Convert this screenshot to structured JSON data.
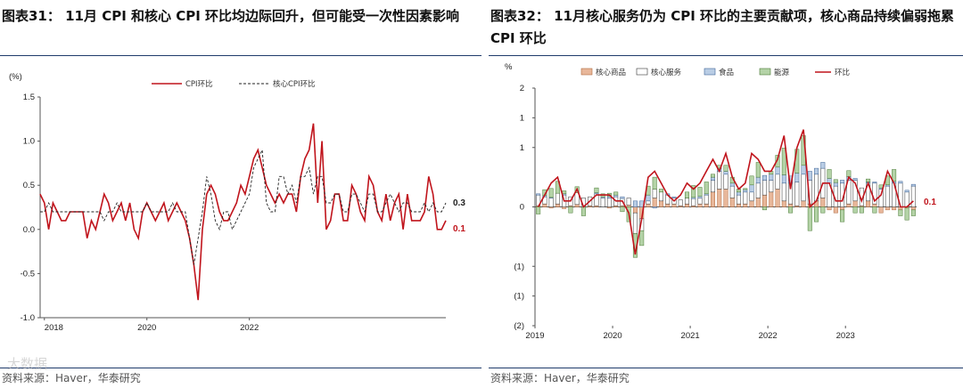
{
  "left": {
    "title": "图表31： 11月 CPI 和核心 CPI 环比均边际回升，但可能受一次性因素影响",
    "source": "资料来源：Haver，华泰研究",
    "chart_data": {
      "type": "line",
      "unit_label": "(%)",
      "x_start": "2017-12",
      "x_end": "2023-12",
      "x_ticks": [
        "2018",
        "2020",
        "2022"
      ],
      "ylim": [
        -1.0,
        1.5
      ],
      "y_ticks": [
        "1.5",
        "1.0",
        "0.5",
        "0.0",
        "-0.5",
        "-1.0"
      ],
      "y_tick_values": [
        1.5,
        1.0,
        0.5,
        0.0,
        -0.5,
        -1.0
      ],
      "series": [
        {
          "name": "CPI环比",
          "style": "solid",
          "color": "#c0141c",
          "values": [
            0.4,
            0.3,
            0.0,
            0.3,
            0.2,
            0.1,
            0.1,
            0.2,
            0.2,
            0.2,
            0.2,
            -0.1,
            0.1,
            0.0,
            0.2,
            0.4,
            0.3,
            0.1,
            0.2,
            0.3,
            0.1,
            0.3,
            0.0,
            -0.1,
            0.2,
            0.3,
            0.2,
            0.1,
            0.2,
            0.3,
            0.1,
            0.2,
            0.3,
            0.2,
            0.1,
            -0.1,
            -0.4,
            -0.8,
            0.0,
            0.4,
            0.5,
            0.4,
            0.2,
            0.1,
            0.1,
            0.2,
            0.3,
            0.5,
            0.4,
            0.6,
            0.8,
            0.9,
            0.7,
            0.5,
            0.4,
            0.3,
            0.4,
            0.3,
            0.4,
            0.4,
            0.2,
            0.6,
            0.8,
            0.9,
            1.2,
            0.3,
            1.0,
            0.0,
            0.1,
            0.4,
            0.4,
            0.1,
            0.1,
            0.5,
            0.4,
            0.2,
            0.1,
            0.6,
            0.5,
            0.2,
            0.1,
            0.4,
            0.1,
            0.3,
            0.4,
            0.0,
            0.4,
            0.1,
            0.1,
            0.1,
            0.2,
            0.6,
            0.4,
            0.0,
            0.0,
            0.1
          ]
        },
        {
          "name": "核心CPI环比",
          "style": "dashed",
          "color": "#222222",
          "values": [
            0.2,
            0.2,
            0.3,
            0.2,
            0.2,
            0.2,
            0.2,
            0.2,
            0.2,
            0.2,
            0.2,
            0.2,
            0.2,
            0.2,
            0.2,
            0.1,
            0.2,
            0.2,
            0.3,
            0.2,
            0.2,
            0.2,
            0.2,
            0.2,
            0.2,
            0.3,
            0.2,
            0.2,
            0.2,
            0.2,
            0.2,
            0.3,
            0.2,
            0.2,
            0.2,
            -0.1,
            -0.4,
            -0.1,
            0.2,
            0.6,
            0.4,
            0.1,
            0.0,
            0.2,
            0.2,
            0.0,
            0.1,
            0.2,
            0.3,
            0.4,
            0.7,
            0.8,
            0.9,
            0.3,
            0.2,
            0.2,
            0.6,
            0.6,
            0.4,
            0.5,
            0.3,
            0.6,
            0.6,
            0.7,
            0.4,
            0.6,
            0.6,
            0.3,
            0.3,
            0.4,
            0.4,
            0.2,
            0.2,
            0.4,
            0.4,
            0.3,
            0.2,
            0.4,
            0.4,
            0.2,
            0.2,
            0.3,
            0.4,
            0.3,
            0.2,
            0.3,
            0.3,
            0.2,
            0.2,
            0.2,
            0.3,
            0.2,
            0.3,
            0.2,
            0.2,
            0.3
          ]
        }
      ],
      "end_labels": [
        {
          "text": "0.3",
          "color": "#222222"
        },
        {
          "text": "0.1",
          "color": "#c0141c"
        }
      ]
    }
  },
  "right": {
    "title": "图表32： 11月核心服务仍为 CPI 环比的主要贡献项，核心商品持续偏弱拖累 CPI 环比",
    "source": "资料来源：Haver，华泰研究",
    "chart_data": {
      "type": "bar",
      "stacked": true,
      "unit_label": "%",
      "x_start": "2019-01",
      "x_end": "2023-11",
      "x_ticks": [
        "2019",
        "2020",
        "2021",
        "2022",
        "2023"
      ],
      "ylim": [
        -2,
        2
      ],
      "y_ticks": [
        "2",
        "1",
        "1",
        "0",
        "(1)",
        "(1)",
        "(2)"
      ],
      "y_tick_values": [
        2,
        1.5,
        1,
        0,
        -1,
        -1.5,
        -2
      ],
      "series": [
        {
          "name": "核心商品",
          "color": "#e8b79a",
          "edge": "#b06a40",
          "values": [
            0.02,
            0.05,
            -0.02,
            0.05,
            -0.03,
            0.02,
            0.04,
            0.0,
            0.02,
            0.02,
            0.0,
            -0.02,
            0.02,
            0.02,
            0.03,
            -0.1,
            -0.2,
            0.05,
            0.15,
            0.1,
            0.05,
            0.05,
            0.02,
            0.05,
            0.02,
            0.05,
            0.05,
            0.25,
            0.3,
            0.3,
            0.15,
            0.05,
            0.05,
            0.1,
            0.15,
            0.2,
            0.25,
            0.3,
            0.1,
            0.05,
            0.02,
            0.1,
            0.05,
            0.1,
            0.15,
            -0.05,
            -0.1,
            -0.05,
            0.05,
            0.1,
            0.02,
            0.1,
            0.05,
            -0.1,
            -0.05,
            -0.05,
            -0.05,
            -0.02,
            -0.05
          ]
        },
        {
          "name": "核心服务",
          "color": "#ffffff",
          "edge": "#333333",
          "values": [
            0.18,
            0.12,
            0.15,
            0.18,
            0.2,
            0.15,
            0.2,
            0.15,
            0.15,
            0.2,
            0.15,
            0.15,
            0.15,
            0.12,
            0.12,
            -0.35,
            -0.2,
            0.05,
            0.15,
            0.15,
            0.15,
            0.1,
            0.1,
            0.1,
            0.12,
            0.1,
            0.15,
            0.2,
            0.3,
            0.25,
            0.2,
            0.15,
            0.2,
            0.15,
            0.25,
            0.25,
            0.2,
            0.25,
            0.3,
            0.35,
            0.4,
            0.45,
            0.4,
            0.45,
            0.5,
            0.4,
            0.35,
            0.4,
            0.4,
            0.35,
            0.3,
            0.3,
            0.35,
            0.3,
            0.35,
            0.4,
            0.4,
            0.25,
            0.35
          ]
        },
        {
          "name": "食品",
          "color": "#b9cde5",
          "edge": "#3f6596",
          "values": [
            0.02,
            0.02,
            0.01,
            0.0,
            0.02,
            0.0,
            0.0,
            0.0,
            0.0,
            0.02,
            0.02,
            0.03,
            0.03,
            0.03,
            0.0,
            0.1,
            0.1,
            0.1,
            -0.02,
            0.0,
            0.02,
            0.02,
            0.0,
            0.0,
            0.02,
            0.03,
            0.02,
            0.05,
            0.05,
            0.05,
            0.05,
            0.05,
            0.04,
            0.12,
            0.1,
            0.08,
            0.1,
            0.12,
            0.14,
            0.12,
            0.15,
            0.15,
            0.15,
            0.1,
            0.1,
            0.08,
            0.06,
            0.05,
            0.06,
            0.03,
            0.0,
            0.02,
            0.02,
            0.02,
            0.02,
            0.03,
            0.03,
            0.03,
            0.03
          ]
        },
        {
          "name": "能源",
          "color": "#b4d3a7",
          "edge": "#4a7a35",
          "values": [
            -0.12,
            0.1,
            0.15,
            0.2,
            0.05,
            -0.1,
            0.1,
            -0.15,
            0.0,
            0.08,
            0.05,
            0.05,
            0.05,
            -0.08,
            -0.25,
            -0.4,
            -0.25,
            0.15,
            0.2,
            0.05,
            0.0,
            0.0,
            0.0,
            0.1,
            0.2,
            0.15,
            0.2,
            0.05,
            0.05,
            0.1,
            0.1,
            0.05,
            0.02,
            0.15,
            0.25,
            -0.05,
            0.05,
            0.2,
            0.45,
            -0.1,
            0.4,
            0.5,
            -0.4,
            -0.25,
            -0.1,
            0.15,
            0.05,
            -0.2,
            0.1,
            -0.1,
            -0.1,
            0.05,
            -0.1,
            0.05,
            0.15,
            0.2,
            -0.1,
            -0.2,
            -0.1
          ]
        }
      ],
      "line_series": {
        "name": "环比",
        "color": "#c0141c",
        "values": [
          0.0,
          0.2,
          0.4,
          0.5,
          0.1,
          0.1,
          0.3,
          0.0,
          0.1,
          0.2,
          0.2,
          0.2,
          0.1,
          0.1,
          -0.1,
          -0.8,
          -0.2,
          0.5,
          0.6,
          0.4,
          0.2,
          0.1,
          0.2,
          0.4,
          0.3,
          0.4,
          0.6,
          0.8,
          0.6,
          0.9,
          0.5,
          0.3,
          0.4,
          0.9,
          0.8,
          0.6,
          0.6,
          0.8,
          1.2,
          0.3,
          1.0,
          1.3,
          0.0,
          0.1,
          0.4,
          0.4,
          0.1,
          0.1,
          0.5,
          0.4,
          0.1,
          0.4,
          0.1,
          0.2,
          0.6,
          0.4,
          0.0,
          0.0,
          0.1
        ]
      },
      "end_labels": [
        {
          "text": "0.1",
          "color": "#c0141c"
        }
      ]
    }
  },
  "watermark": "大数据"
}
